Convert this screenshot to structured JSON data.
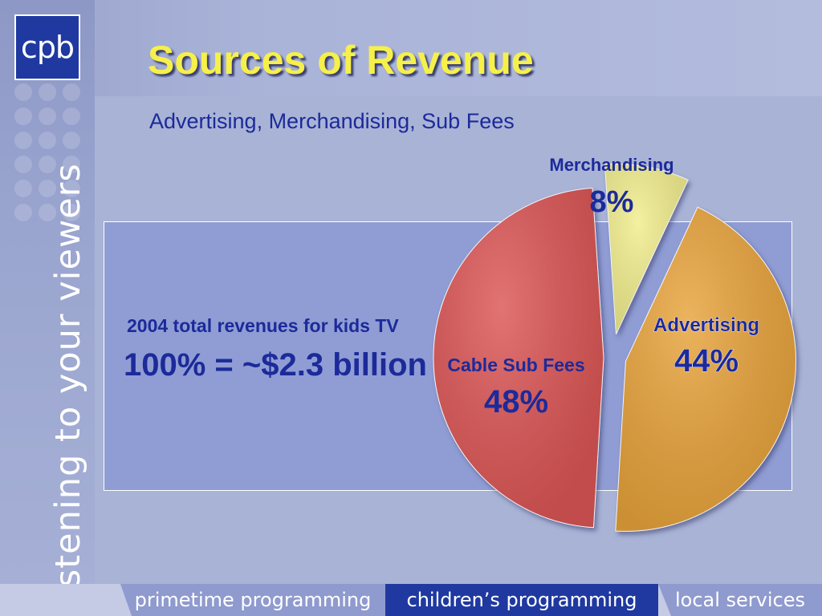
{
  "logo": {
    "text": "cpb"
  },
  "tagline": "listening to your viewers",
  "slide": {
    "title": "Sources of Revenue",
    "subtitle": "Advertising, Merchandising, Sub Fees"
  },
  "total": {
    "label": "2004 total revenues for kids TV",
    "value": "100% = ~$2.3 billion"
  },
  "chart_data": {
    "type": "pie",
    "title": "",
    "start_angle_deg": 25,
    "slices": [
      {
        "name": "Advertising",
        "value": 44,
        "label": "44%",
        "color": "#e8a33b",
        "label_color": "#1c2a9a"
      },
      {
        "name": "Cable Sub Fees",
        "value": 48,
        "label": "48%",
        "color": "#dc5555",
        "label_color": "#1c2a9a"
      },
      {
        "name": "Merchandising",
        "value": 8,
        "label": "8%",
        "color": "#f2ee8e",
        "label_color": "#1c2a9a"
      }
    ]
  },
  "nav": {
    "items": [
      {
        "label": "primetime programming"
      },
      {
        "label": "children’s programming"
      },
      {
        "label": "local services"
      }
    ]
  },
  "colors": {
    "background": "#a9b3d6",
    "title": "#f6f04a",
    "text_dark_blue": "#1c2a9a",
    "panel": "#909dd4",
    "logo": "#1f39a0"
  }
}
